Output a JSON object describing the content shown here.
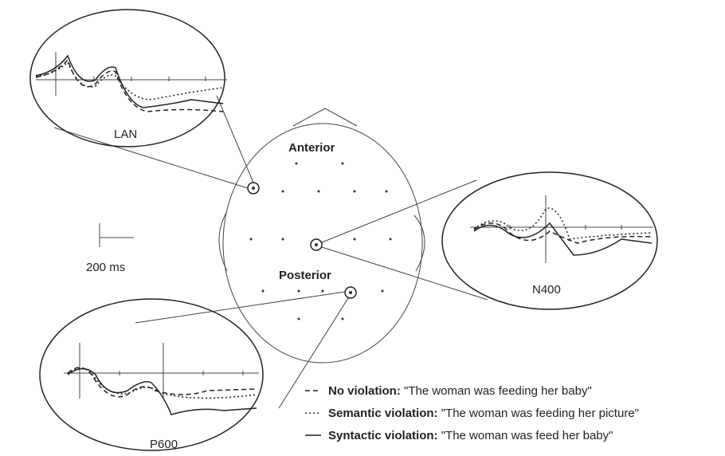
{
  "labels": {
    "anterior": "Anterior",
    "posterior": "Posterior",
    "scale": "200 ms"
  },
  "insets": [
    {
      "label": "LAN"
    },
    {
      "label": "N400"
    },
    {
      "label": "P600"
    }
  ],
  "legend": [
    {
      "name": "No violation:",
      "text": "\"The woman was feeding her baby\""
    },
    {
      "name": "Semantic violation:",
      "text": "\"The woman was feeding her picture\""
    },
    {
      "name": "Syntactic violation:",
      "text": "\"The woman was feed her baby\""
    }
  ]
}
